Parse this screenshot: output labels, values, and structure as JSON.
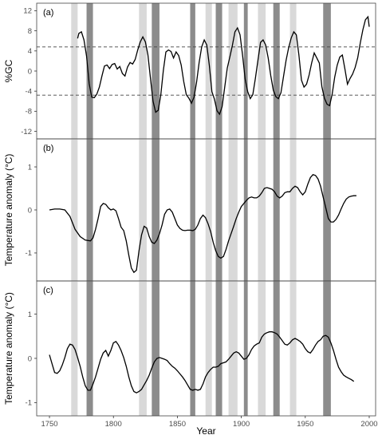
{
  "colors": {
    "band_light": "#d9d9d9",
    "band_dark": "#8c8c8c",
    "line": "#000000",
    "frame": "#444444",
    "threshold": "#444444"
  },
  "chart_data": {
    "type": "line",
    "xlabel": "Year",
    "xlim": [
      1740,
      2005
    ],
    "x_ticks": [
      1750,
      1800,
      1850,
      1900,
      1950,
      2000
    ],
    "grid": false,
    "bands": {
      "light": [
        [
          1767,
          1772
        ],
        [
          1820,
          1826
        ],
        [
          1872,
          1877
        ],
        [
          1890,
          1897
        ],
        [
          1913,
          1919
        ],
        [
          1938,
          1943
        ]
      ],
      "dark": [
        [
          1779,
          1784
        ],
        [
          1830,
          1836
        ],
        [
          1860,
          1864
        ],
        [
          1880,
          1885
        ],
        [
          1902,
          1905
        ],
        [
          1925,
          1930
        ],
        [
          1964,
          1970
        ]
      ]
    },
    "panels": [
      {
        "label": "(a)",
        "ylabel": "%GC",
        "ylim": [
          -13.5,
          13.5
        ],
        "y_ticks": [
          12,
          8,
          4,
          0,
          -4,
          -8,
          -12
        ],
        "hlines": [
          4.8,
          -4.8
        ],
        "series": [
          {
            "x": [
              1772,
              1773,
              1775,
              1777,
              1779,
              1781,
              1783,
              1785,
              1787,
              1789,
              1791,
              1793,
              1795,
              1797,
              1799,
              1801,
              1803,
              1805,
              1807,
              1809,
              1811,
              1813,
              1815,
              1817,
              1819,
              1821,
              1823,
              1825,
              1827,
              1829,
              1831,
              1833,
              1835,
              1837,
              1839,
              1841,
              1843,
              1845,
              1847,
              1849,
              1851,
              1853,
              1855,
              1857,
              1859,
              1861,
              1863,
              1865,
              1867,
              1869,
              1871,
              1873,
              1875,
              1877,
              1879,
              1881,
              1883,
              1885,
              1887,
              1889,
              1891,
              1893,
              1895,
              1897,
              1899,
              1901,
              1903,
              1905,
              1907,
              1909,
              1911,
              1913,
              1915,
              1917,
              1919,
              1921,
              1923,
              1925,
              1927,
              1929,
              1931,
              1933,
              1935,
              1937,
              1939,
              1941,
              1943,
              1945,
              1947,
              1949,
              1951,
              1953,
              1955,
              1957,
              1959,
              1961,
              1963,
              1965,
              1967,
              1969,
              1971,
              1973,
              1975,
              1977,
              1979,
              1981,
              1983,
              1985,
              1987,
              1989,
              1991,
              1993,
              1995,
              1997,
              1999,
              2000
            ],
            "y": [
              6.5,
              7.5,
              7.8,
              6.2,
              3,
              -2.5,
              -5.2,
              -5.3,
              -4.6,
              -3.2,
              -1,
              1,
              1.2,
              0.5,
              1.3,
              1.5,
              0.4,
              0.9,
              -0.5,
              -1,
              0.8,
              1.7,
              1.4,
              2.3,
              4.2,
              5.8,
              6.8,
              5.8,
              3.2,
              -1.5,
              -6,
              -8.2,
              -7.8,
              -4.8,
              0.1,
              3.8,
              4.2,
              3.9,
              2.6,
              3.8,
              3.1,
              1.2,
              -2.1,
              -4.7,
              -5.4,
              -6.4,
              -5.2,
              -2.2,
              1.7,
              4.8,
              6.2,
              5.2,
              1.1,
              -4.1,
              -5.6,
              -7.9,
              -8.6,
              -7.1,
              -3.2,
              0.6,
              2.8,
              5.1,
              7.8,
              8.6,
              7.2,
              3.1,
              -1.6,
              -4.1,
              -5.5,
              -4.7,
              -1.5,
              2.2,
              5.7,
              6.2,
              5.2,
              2.6,
              -0.9,
              -3.8,
              -5.1,
              -5.5,
              -4.3,
              -1.1,
              2.1,
              4.6,
              6.6,
              7.8,
              7.2,
              3.2,
              -1.8,
              -3.2,
              -2.6,
              -0.8,
              1.6,
              3.6,
              2.6,
              1.6,
              -3.1,
              -5.4,
              -6.6,
              -6.9,
              -4.6,
              -1.2,
              1.2,
              2.8,
              3.2,
              0.4,
              -2.6,
              -1.5,
              -0.6,
              0.7,
              2.6,
              5.6,
              8.2,
              10.2,
              10.8,
              8.8
            ]
          }
        ]
      },
      {
        "label": "(b)",
        "ylabel": "Temperature anomaly (°C)",
        "ylim": [
          -1.65,
          1.65
        ],
        "y_ticks": [
          1,
          0,
          -1
        ],
        "series": [
          {
            "x": [
              1750,
              1754,
              1758,
              1762,
              1766,
              1770,
              1774,
              1778,
              1782,
              1784,
              1786,
              1788,
              1790,
              1792,
              1794,
              1796,
              1798,
              1800,
              1802,
              1804,
              1806,
              1808,
              1810,
              1812,
              1814,
              1816,
              1818,
              1820,
              1822,
              1824,
              1826,
              1828,
              1830,
              1832,
              1834,
              1836,
              1838,
              1840,
              1842,
              1844,
              1846,
              1848,
              1850,
              1852,
              1854,
              1856,
              1858,
              1860,
              1862,
              1864,
              1866,
              1868,
              1870,
              1872,
              1874,
              1876,
              1878,
              1880,
              1882,
              1884,
              1886,
              1888,
              1890,
              1892,
              1894,
              1896,
              1898,
              1900,
              1902,
              1904,
              1906,
              1908,
              1910,
              1912,
              1914,
              1916,
              1918,
              1920,
              1922,
              1924,
              1926,
              1928,
              1930,
              1932,
              1934,
              1936,
              1938,
              1940,
              1942,
              1944,
              1946,
              1948,
              1950,
              1952,
              1954,
              1956,
              1958,
              1960,
              1962,
              1964,
              1966,
              1968,
              1970,
              1972,
              1974,
              1976,
              1978,
              1980,
              1982,
              1984,
              1986,
              1988,
              1990
            ],
            "y": [
              0,
              0.02,
              0.02,
              0,
              -0.15,
              -0.45,
              -0.62,
              -0.7,
              -0.72,
              -0.65,
              -0.45,
              -0.2,
              0.08,
              0.15,
              0.13,
              0.05,
              0,
              0.02,
              -0.02,
              -0.2,
              -0.4,
              -0.48,
              -0.72,
              -1.05,
              -1.35,
              -1.45,
              -1.4,
              -0.95,
              -0.58,
              -0.38,
              -0.42,
              -0.62,
              -0.75,
              -0.78,
              -0.7,
              -0.55,
              -0.35,
              -0.1,
              0,
              0.02,
              -0.05,
              -0.2,
              -0.35,
              -0.43,
              -0.47,
              -0.48,
              -0.47,
              -0.47,
              -0.48,
              -0.45,
              -0.35,
              -0.2,
              -0.12,
              -0.18,
              -0.32,
              -0.5,
              -0.75,
              -0.95,
              -1.08,
              -1.12,
              -1.08,
              -0.92,
              -0.72,
              -0.55,
              -0.38,
              -0.2,
              -0.05,
              0.08,
              0.15,
              0.22,
              0.28,
              0.3,
              0.28,
              0.28,
              0.32,
              0.4,
              0.5,
              0.52,
              0.5,
              0.48,
              0.42,
              0.32,
              0.28,
              0.32,
              0.4,
              0.42,
              0.42,
              0.5,
              0.55,
              0.52,
              0.42,
              0.35,
              0.42,
              0.6,
              0.75,
              0.82,
              0.8,
              0.72,
              0.55,
              0.3,
              0.05,
              -0.2,
              -0.28,
              -0.28,
              -0.22,
              -0.12,
              0.02,
              0.15,
              0.25,
              0.3,
              0.32,
              0.33,
              0.33
            ]
          }
        ]
      },
      {
        "label": "(c)",
        "ylabel": "Temperature anomaly (°C)",
        "ylim": [
          -1.3,
          1.75
        ],
        "y_ticks": [
          1,
          0,
          -1
        ],
        "series": [
          {
            "x": [
              1750,
              1752,
              1754,
              1756,
              1758,
              1760,
              1762,
              1764,
              1766,
              1768,
              1770,
              1772,
              1774,
              1776,
              1778,
              1780,
              1782,
              1784,
              1786,
              1788,
              1790,
              1792,
              1794,
              1796,
              1798,
              1800,
              1802,
              1804,
              1806,
              1808,
              1810,
              1812,
              1814,
              1816,
              1818,
              1820,
              1822,
              1824,
              1826,
              1828,
              1830,
              1832,
              1834,
              1836,
              1838,
              1840,
              1842,
              1844,
              1846,
              1848,
              1850,
              1852,
              1854,
              1856,
              1858,
              1860,
              1862,
              1864,
              1866,
              1868,
              1870,
              1872,
              1874,
              1876,
              1878,
              1880,
              1882,
              1884,
              1886,
              1888,
              1890,
              1892,
              1894,
              1896,
              1898,
              1900,
              1902,
              1904,
              1906,
              1908,
              1910,
              1912,
              1914,
              1916,
              1918,
              1920,
              1922,
              1924,
              1926,
              1928,
              1930,
              1932,
              1934,
              1936,
              1938,
              1940,
              1942,
              1944,
              1946,
              1948,
              1950,
              1952,
              1954,
              1956,
              1958,
              1960,
              1962,
              1964,
              1966,
              1968,
              1970,
              1972,
              1974,
              1976,
              1978,
              1980,
              1982,
              1984,
              1986,
              1988
            ],
            "y": [
              0.08,
              -0.12,
              -0.32,
              -0.34,
              -0.28,
              -0.15,
              0.02,
              0.22,
              0.32,
              0.3,
              0.2,
              0.02,
              -0.18,
              -0.42,
              -0.62,
              -0.72,
              -0.72,
              -0.58,
              -0.42,
              -0.22,
              -0.02,
              0.12,
              0.18,
              0.05,
              0.18,
              0.35,
              0.38,
              0.3,
              0.18,
              0.02,
              -0.18,
              -0.42,
              -0.62,
              -0.75,
              -0.78,
              -0.75,
              -0.7,
              -0.6,
              -0.5,
              -0.38,
              -0.22,
              -0.08,
              0,
              0.02,
              0,
              -0.02,
              -0.05,
              -0.12,
              -0.18,
              -0.22,
              -0.28,
              -0.35,
              -0.42,
              -0.5,
              -0.6,
              -0.7,
              -0.72,
              -0.7,
              -0.72,
              -0.7,
              -0.58,
              -0.42,
              -0.32,
              -0.25,
              -0.2,
              -0.2,
              -0.18,
              -0.12,
              -0.1,
              -0.08,
              -0.02,
              0.05,
              0.12,
              0.15,
              0.12,
              0.05,
              -0.02,
              0,
              0.08,
              0.2,
              0.28,
              0.32,
              0.35,
              0.48,
              0.55,
              0.58,
              0.6,
              0.6,
              0.58,
              0.55,
              0.48,
              0.4,
              0.32,
              0.3,
              0.35,
              0.42,
              0.45,
              0.42,
              0.38,
              0.32,
              0.22,
              0.15,
              0.12,
              0.2,
              0.3,
              0.38,
              0.42,
              0.5,
              0.52,
              0.48,
              0.35,
              0.18,
              -0.02,
              -0.2,
              -0.3,
              -0.38,
              -0.42,
              -0.45,
              -0.48,
              -0.52
            ]
          }
        ]
      }
    ]
  }
}
